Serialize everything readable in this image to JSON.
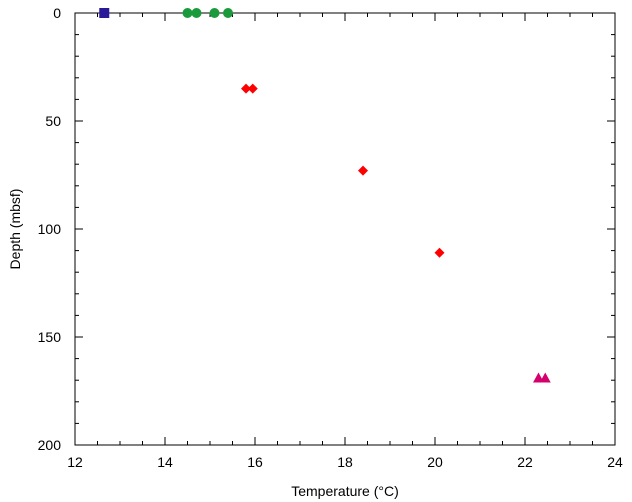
{
  "chart_data": {
    "type": "scatter",
    "xlabel": "Temperature (°C)",
    "ylabel": "Depth (mbsf)",
    "xlim": [
      12,
      24
    ],
    "ylim": [
      0,
      200
    ],
    "y_inverted": true,
    "x_ticks": [
      12,
      14,
      16,
      18,
      20,
      22,
      24
    ],
    "x_tick_labels": [
      "12",
      "14",
      "16",
      "18",
      "20",
      "22",
      "24"
    ],
    "y_ticks": [
      0,
      50,
      100,
      150,
      200
    ],
    "y_tick_labels": [
      "0",
      "50",
      "100",
      "150",
      "200"
    ],
    "grid": false,
    "series": [
      {
        "marker": "square",
        "color": "#2a1a9a",
        "points": [
          {
            "x": 12.65,
            "y": 0
          }
        ]
      },
      {
        "marker": "circle",
        "color": "#1a9a3a",
        "points": [
          {
            "x": 14.5,
            "y": 0
          },
          {
            "x": 14.7,
            "y": 0
          },
          {
            "x": 15.1,
            "y": 0
          },
          {
            "x": 15.4,
            "y": 0
          }
        ]
      },
      {
        "marker": "diamond",
        "color": "#ff0000",
        "points": [
          {
            "x": 15.8,
            "y": 35
          },
          {
            "x": 15.95,
            "y": 35
          },
          {
            "x": 18.4,
            "y": 73
          },
          {
            "x": 20.1,
            "y": 111
          }
        ]
      },
      {
        "marker": "triangle",
        "color": "#d4006e",
        "points": [
          {
            "x": 22.3,
            "y": 169
          },
          {
            "x": 22.45,
            "y": 169
          }
        ]
      }
    ]
  }
}
